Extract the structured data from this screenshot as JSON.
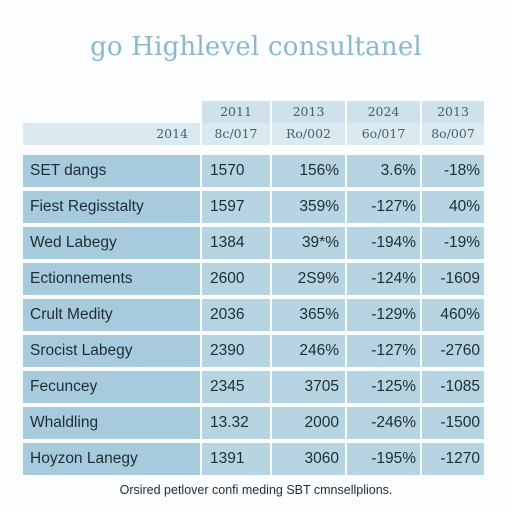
{
  "title": "go Highlevel consultanel",
  "header": {
    "years": [
      "2011",
      "2013",
      "2024",
      "2013"
    ],
    "row_label": "2014",
    "subheaders": [
      "8c/017",
      "Ro/002",
      "6o/017",
      "8o/007"
    ]
  },
  "rows": [
    {
      "label": "SET dangs",
      "values": [
        "1570",
        "156%",
        "3.6%",
        "-18%"
      ]
    },
    {
      "label": "Fiest Regisstalty",
      "values": [
        "1597",
        "359%",
        "-127%",
        "40%"
      ]
    },
    {
      "label": "Wed Labegy",
      "values": [
        "1384",
        "39*%",
        "-194%",
        "-19%"
      ]
    },
    {
      "label": "Ectionnements",
      "values": [
        "2600",
        "2S9%",
        "-124%",
        "-1609"
      ]
    },
    {
      "label": "Crult Medity",
      "values": [
        "2036",
        "365%",
        "-129%",
        "460%"
      ]
    },
    {
      "label": "Srocist Labegy",
      "values": [
        "2390",
        "246%",
        "-127%",
        "-2760"
      ]
    },
    {
      "label": "Fecuncey",
      "values": [
        "2345",
        "3705",
        "-125%",
        "-1085"
      ]
    },
    {
      "label": "Whaldling",
      "values": [
        "13.32",
        "2000",
        "-246%",
        "-1500"
      ]
    },
    {
      "label": "Hoyzon Lanegy",
      "values": [
        "1391",
        "3060",
        "-195%",
        "-1270"
      ]
    }
  ],
  "footnote": "Orsired petlover confi meding SBT cmnsellplions."
}
